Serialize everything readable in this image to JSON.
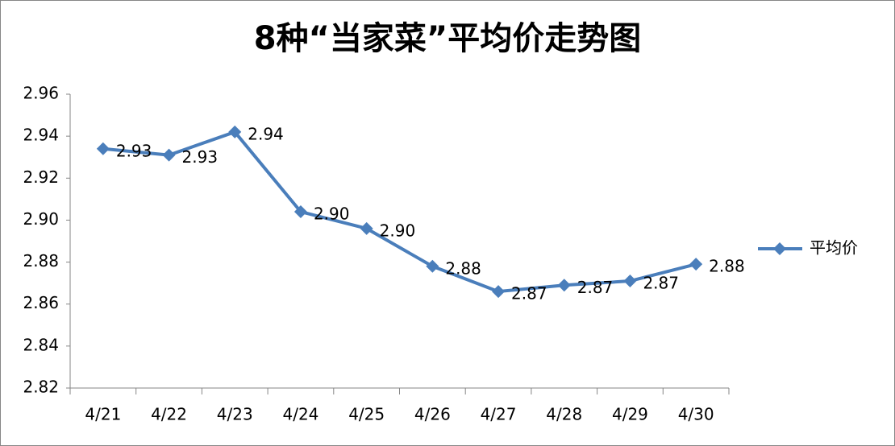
{
  "chart_data": {
    "type": "line",
    "title": "8种“当家菜”平均价走势图",
    "categories": [
      "4/21",
      "4/22",
      "4/23",
      "4/24",
      "4/25",
      "4/26",
      "4/27",
      "4/28",
      "4/29",
      "4/30"
    ],
    "series": [
      {
        "name": "平均价",
        "color": "#4a7ebb",
        "values": [
          2.934,
          2.931,
          2.942,
          2.904,
          2.896,
          2.878,
          2.866,
          2.869,
          2.871,
          2.879
        ],
        "value_labels": [
          "2.93",
          "2.93",
          "2.94",
          "2.90",
          "2.90",
          "2.88",
          "2.87",
          "2.87",
          "2.87",
          "2.88"
        ]
      }
    ],
    "ylim": [
      2.82,
      2.96
    ],
    "yticks": [
      2.82,
      2.84,
      2.86,
      2.88,
      {
        "value": 2.9,
        "label": "2.90"
      },
      2.92,
      2.94,
      2.96
    ],
    "grid": false,
    "legend": "right"
  }
}
